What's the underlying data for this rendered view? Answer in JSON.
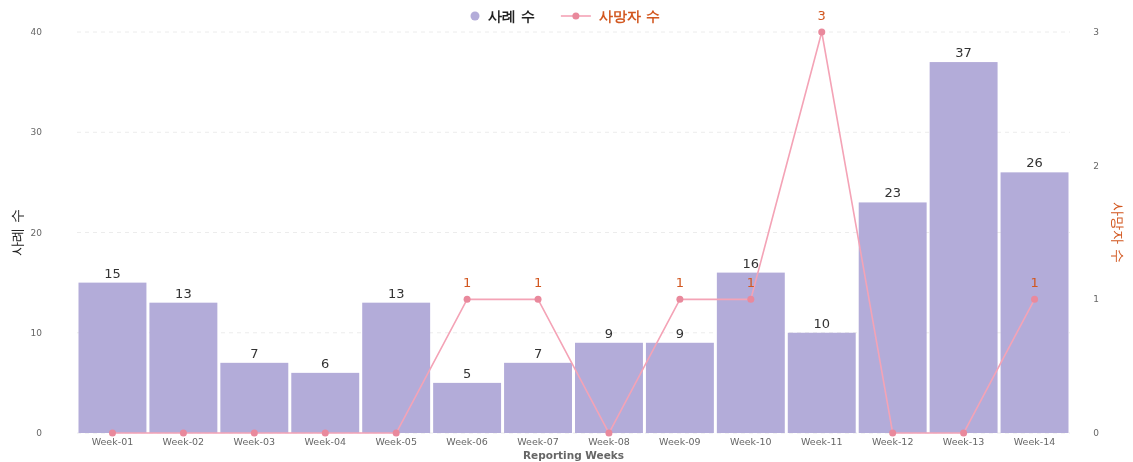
{
  "chart_data": {
    "type": "bar",
    "categories": [
      "Week-01",
      "Week-02",
      "Week-03",
      "Week-04",
      "Week-05",
      "Week-06",
      "Week-07",
      "Week-08",
      "Week-09",
      "Week-10",
      "Week-11",
      "Week-12",
      "Week-13",
      "Week-14"
    ],
    "xlabel": "Reporting Weeks",
    "ylabel": "사례 수",
    "y2label": "사망자 수",
    "ylim": [
      0,
      40
    ],
    "yticks": [
      0,
      10,
      20,
      30,
      40
    ],
    "y2lim": [
      0,
      3
    ],
    "y2ticks": [
      0,
      1,
      2,
      3
    ],
    "grid": "y",
    "legend": "top",
    "data_labels": true,
    "series": [
      {
        "name": "사례 수",
        "color": "#b3acd9",
        "values": [
          15,
          13,
          7,
          6,
          13,
          5,
          7,
          9,
          9,
          16,
          10,
          23,
          37,
          26
        ]
      },
      {
        "name": "사망자 수",
        "type": "line",
        "axis": "y2",
        "color": "#f4a3b6",
        "marker": "circle",
        "values": [
          0,
          0,
          0,
          0,
          0,
          1,
          1,
          0,
          1,
          1,
          3,
          0,
          0,
          1
        ],
        "value_labels": [
          null,
          null,
          null,
          null,
          null,
          "1",
          "1",
          null,
          "1",
          "1",
          "3",
          null,
          null,
          "1"
        ]
      }
    ]
  }
}
